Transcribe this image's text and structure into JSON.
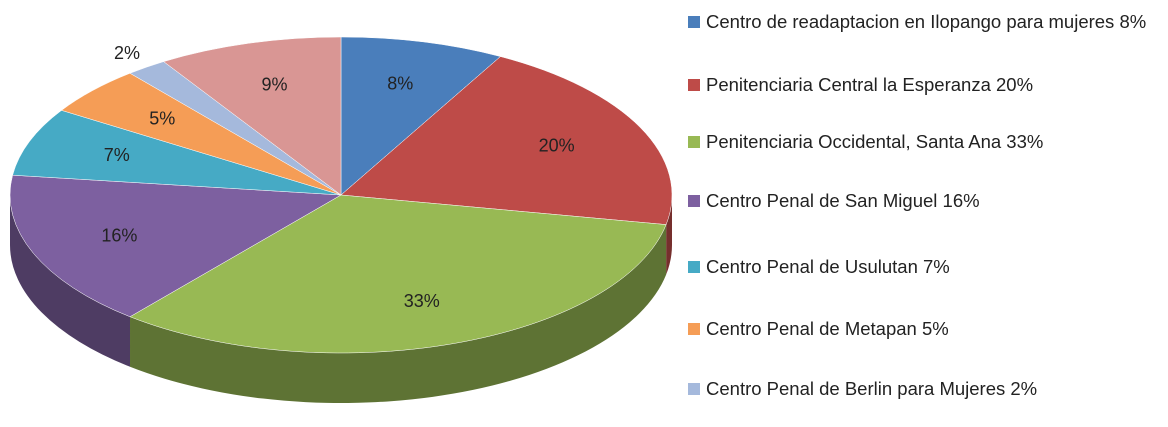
{
  "chart_data": {
    "type": "pie3d",
    "categories": [
      "Centro de readaptacion en Ilopango para mujeres  8%",
      "Penitenciaria Central la Esperanza  20%",
      "Penitenciaria Occidental, Santa Ana 33%",
      "Centro Penal de San Miguel  16%",
      "Centro Penal de Usulutan 7%",
      "Centro Penal de Metapan  5%",
      "Centro Penal de Berlin para Mujeres  2%",
      null
    ],
    "values": [
      8,
      20,
      33,
      16,
      7,
      5,
      2,
      9
    ],
    "value_labels": [
      "8%",
      "20%",
      "33%",
      "16%",
      "7%",
      "5%",
      "2%",
      "9%"
    ],
    "colors": [
      "#4a7ebb",
      "#be4b48",
      "#98b954",
      "#7d60a0",
      "#46aac5",
      "#f59d56",
      "#a5b9dc",
      "#d99694"
    ]
  }
}
